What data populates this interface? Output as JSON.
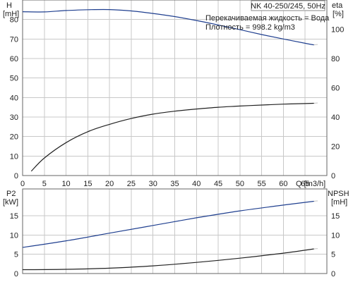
{
  "colors": {
    "head": "#1f3f8f",
    "eta": "#222222",
    "p2": "#1f3f8f",
    "npsh": "#222222",
    "grid": "#c8c8c8"
  },
  "chart_data": [
    {
      "type": "line",
      "title": "NK 40-250/245, 50Hz",
      "annotations": [
        "Перекачиваемая жидкость = Вода",
        "Плотность = 998.2 kg/m3"
      ],
      "xlabel": "Q [m3/h]",
      "xlim": [
        0,
        70
      ],
      "x_ticks": [
        0,
        5,
        10,
        15,
        20,
        25,
        30,
        35,
        40,
        45,
        50,
        55,
        60,
        65
      ],
      "grid": true,
      "y_left": {
        "label_top": "H",
        "label_unit": "[mH]",
        "lim": [
          0,
          90
        ],
        "ticks": [
          0,
          10,
          20,
          30,
          40,
          50,
          60,
          70,
          80
        ]
      },
      "y_right": {
        "label_top": "eta",
        "label_unit": "[%]",
        "lim": [
          0,
          120
        ],
        "ticks": [
          0,
          20,
          40,
          60,
          80,
          100
        ]
      },
      "series": [
        {
          "axis": "left",
          "x": [
            0,
            5,
            10,
            15,
            20,
            25,
            30,
            35,
            40,
            45,
            50,
            55,
            60,
            65,
            67
          ],
          "values": [
            84,
            83.9,
            84.6,
            85,
            85.1,
            84.4,
            83.1,
            81.5,
            79.5,
            77.2,
            74.8,
            72.3,
            70,
            67.8,
            67
          ]
        },
        {
          "axis": "right",
          "x": [
            2,
            5,
            10,
            15,
            20,
            25,
            30,
            35,
            40,
            45,
            50,
            55,
            60,
            65,
            67
          ],
          "values": [
            3,
            12,
            22.5,
            30,
            35,
            39,
            42,
            44,
            45.5,
            46.7,
            47.5,
            48.2,
            48.8,
            49.2,
            49.4
          ]
        }
      ]
    },
    {
      "type": "line",
      "xlim": [
        0,
        70
      ],
      "grid": true,
      "y_left": {
        "label_top": "P2",
        "label_unit": "[kW]",
        "lim": [
          0,
          22
        ],
        "ticks": [
          0,
          5,
          10,
          15
        ]
      },
      "y_right": {
        "label_top": "NPSH",
        "label_unit": "[mH]",
        "lim": [
          0,
          22
        ],
        "ticks": [
          0,
          5,
          10,
          15
        ]
      },
      "series": [
        {
          "axis": "left",
          "x": [
            0,
            10,
            20,
            30,
            40,
            50,
            60,
            67
          ],
          "values": [
            6.8,
            8.5,
            10.5,
            12.5,
            14.5,
            16.3,
            17.8,
            18.8
          ]
        },
        {
          "axis": "right",
          "x": [
            0,
            10,
            20,
            30,
            40,
            50,
            60,
            67
          ],
          "values": [
            1,
            1.1,
            1.4,
            2,
            2.9,
            4,
            5.3,
            6.4
          ]
        }
      ]
    }
  ]
}
